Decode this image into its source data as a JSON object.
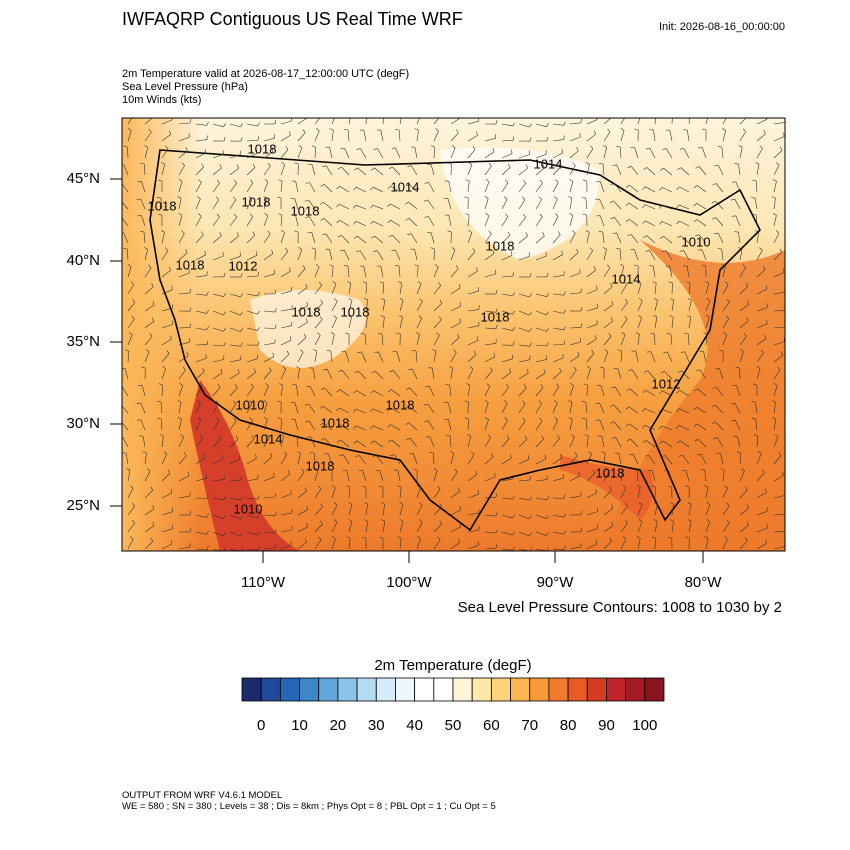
{
  "header": {
    "title": "IWFAQRP Contiguous US Real Time WRF",
    "init": "Init: 2026-08-16_00:00:00",
    "fields": [
      "2m Temperature valid at 2026-08-17_12:00:00 UTC   (degF)",
      "Sea Level Pressure   (hPa)",
      "10m Winds   (kts)"
    ]
  },
  "lat_labels": [
    "45°N",
    "40°N",
    "35°N",
    "30°N",
    "25°N"
  ],
  "lon_labels": [
    "110°W",
    "100°W",
    "90°W",
    "80°W"
  ],
  "contour_labels": [
    "1018",
    "1014",
    "1018",
    "1014",
    "1018",
    "1018",
    "1018",
    "1018",
    "1010",
    "1018",
    "1014",
    "1018",
    "1018",
    "1012",
    "1010",
    "1012",
    "1018",
    "1018",
    "1018",
    "1018",
    "1010",
    "1014"
  ],
  "contour_note": "Sea Level Pressure Contours: 1008 to 1030 by 2",
  "colorbar": {
    "title": "2m Temperature  (degF)",
    "range": [
      -5,
      105
    ],
    "colors": [
      "#1b2a6b",
      "#1f4a9a",
      "#2766b4",
      "#3d86c8",
      "#62a6da",
      "#8cc4e8",
      "#b4dcf3",
      "#d6ecf8",
      "#eef7fb",
      "#ffffff",
      "#ffffff",
      "#fff6da",
      "#ffe8a8",
      "#ffd37a",
      "#fdb651",
      "#f99a3a",
      "#f27a2c",
      "#e85a26",
      "#d63c24",
      "#c0232a",
      "#a51b25",
      "#8a1420"
    ],
    "ticks": [
      0,
      10,
      20,
      30,
      40,
      50,
      60,
      70,
      80,
      90,
      100
    ]
  },
  "footer": [
    "OUTPUT FROM WRF V4.6.1 MODEL",
    "WE = 580 ; SN = 380 ; Levels = 38 ; Dis = 8km ; Phys Opt = 8 ; PBL Opt = 1 ; Cu Opt = 5"
  ]
}
